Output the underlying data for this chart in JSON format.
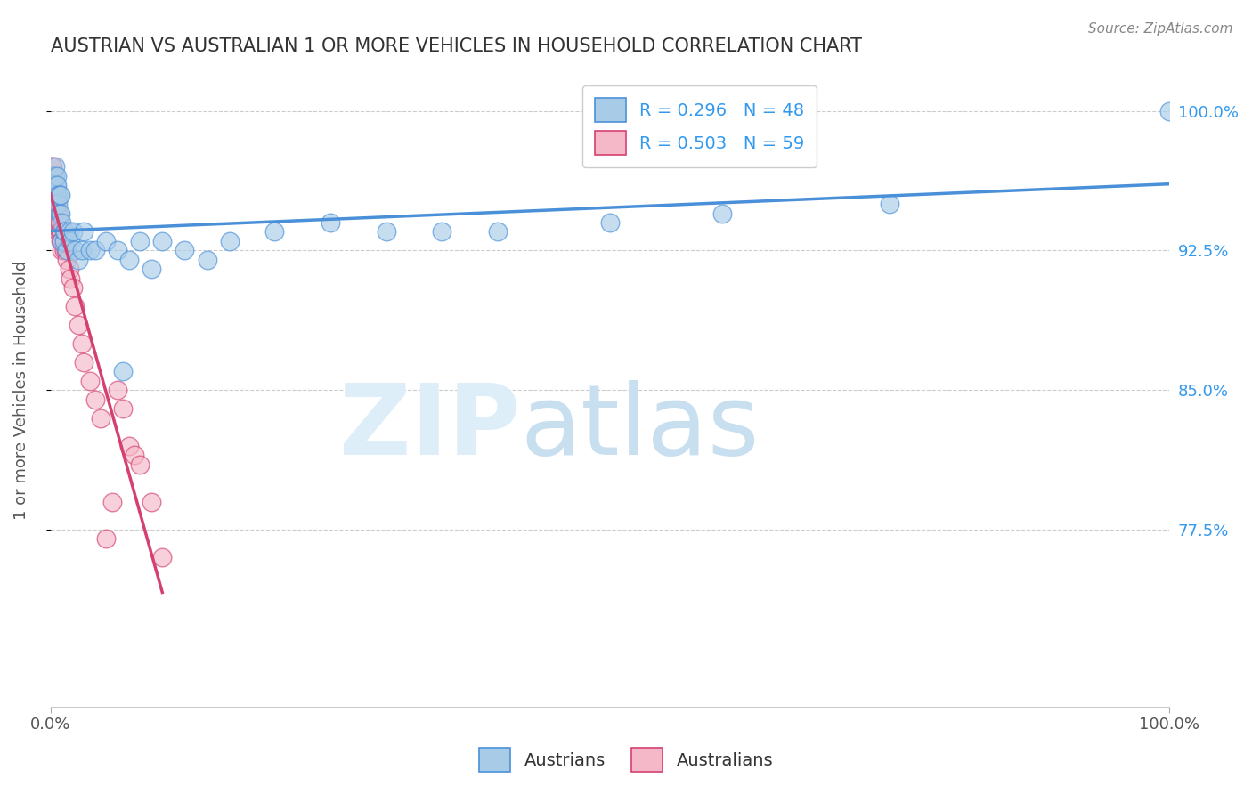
{
  "title": "AUSTRIAN VS AUSTRALIAN 1 OR MORE VEHICLES IN HOUSEHOLD CORRELATION CHART",
  "source": "Source: ZipAtlas.com",
  "ylabel": "1 or more Vehicles in Household",
  "xlim": [
    0.0,
    1.0
  ],
  "ylim": [
    0.68,
    1.02
  ],
  "yticks": [
    0.775,
    0.85,
    0.925,
    1.0
  ],
  "ytick_labels": [
    "77.5%",
    "85.0%",
    "92.5%",
    "100.0%"
  ],
  "xtick_labels": [
    "0.0%",
    "100.0%"
  ],
  "xticks": [
    0.0,
    1.0
  ],
  "legend_austrians": "R = 0.296   N = 48",
  "legend_australians": "R = 0.503   N = 59",
  "color_austrians": "#a8cce8",
  "color_australians": "#f5b8c8",
  "color_austrians_line": "#4a90d9",
  "color_australians_line": "#d44070",
  "watermark_zip": "ZIP",
  "watermark_atlas": "atlas",
  "watermark_color_zip": "#ddeef8",
  "watermark_color_atlas": "#c8dff0",
  "background_color": "#ffffff",
  "grid_color": "#cccccc",
  "austrians_x": [
    0.002,
    0.003,
    0.004,
    0.004,
    0.005,
    0.005,
    0.006,
    0.006,
    0.007,
    0.007,
    0.008,
    0.008,
    0.009,
    0.009,
    0.01,
    0.01,
    0.012,
    0.012,
    0.013,
    0.015,
    0.017,
    0.018,
    0.02,
    0.022,
    0.025,
    0.028,
    0.03,
    0.035,
    0.04,
    0.05,
    0.06,
    0.065,
    0.07,
    0.08,
    0.09,
    0.1,
    0.12,
    0.14,
    0.16,
    0.2,
    0.25,
    0.3,
    0.35,
    0.4,
    0.5,
    0.6,
    0.75,
    1.0
  ],
  "austrians_y": [
    0.955,
    0.96,
    0.965,
    0.97,
    0.955,
    0.96,
    0.965,
    0.96,
    0.955,
    0.95,
    0.945,
    0.955,
    0.945,
    0.955,
    0.93,
    0.94,
    0.93,
    0.935,
    0.935,
    0.925,
    0.935,
    0.93,
    0.935,
    0.925,
    0.92,
    0.925,
    0.935,
    0.925,
    0.925,
    0.93,
    0.925,
    0.86,
    0.92,
    0.93,
    0.915,
    0.93,
    0.925,
    0.92,
    0.93,
    0.935,
    0.94,
    0.935,
    0.935,
    0.935,
    0.94,
    0.945,
    0.95,
    1.0
  ],
  "australians_x": [
    0.001,
    0.001,
    0.001,
    0.001,
    0.001,
    0.001,
    0.001,
    0.001,
    0.002,
    0.002,
    0.002,
    0.002,
    0.002,
    0.002,
    0.003,
    0.003,
    0.003,
    0.003,
    0.004,
    0.004,
    0.004,
    0.005,
    0.005,
    0.005,
    0.006,
    0.006,
    0.007,
    0.007,
    0.007,
    0.008,
    0.008,
    0.009,
    0.009,
    0.01,
    0.01,
    0.01,
    0.012,
    0.012,
    0.014,
    0.015,
    0.017,
    0.018,
    0.02,
    0.022,
    0.025,
    0.028,
    0.03,
    0.035,
    0.04,
    0.045,
    0.05,
    0.055,
    0.06,
    0.065,
    0.07,
    0.075,
    0.08,
    0.09,
    0.1
  ],
  "australians_y": [
    0.97,
    0.965,
    0.965,
    0.96,
    0.96,
    0.955,
    0.96,
    0.955,
    0.97,
    0.965,
    0.96,
    0.955,
    0.955,
    0.95,
    0.965,
    0.96,
    0.955,
    0.95,
    0.955,
    0.95,
    0.945,
    0.955,
    0.95,
    0.945,
    0.945,
    0.94,
    0.945,
    0.94,
    0.935,
    0.94,
    0.935,
    0.935,
    0.93,
    0.935,
    0.93,
    0.925,
    0.93,
    0.925,
    0.925,
    0.92,
    0.915,
    0.91,
    0.905,
    0.895,
    0.885,
    0.875,
    0.865,
    0.855,
    0.845,
    0.835,
    0.77,
    0.79,
    0.85,
    0.84,
    0.82,
    0.815,
    0.81,
    0.79,
    0.76
  ]
}
